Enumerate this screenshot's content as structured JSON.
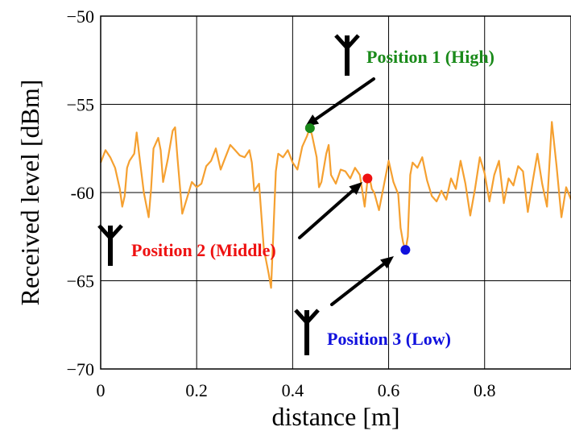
{
  "chart_data": {
    "type": "line",
    "xlabel": "distance [m]",
    "ylabel": "Received level [dBm]",
    "xlim": [
      0,
      0.98
    ],
    "ylim": [
      -70,
      -50
    ],
    "x_ticks": [
      0,
      0.2,
      0.4,
      0.6,
      0.8
    ],
    "x_tick_labels": [
      "0",
      "0.2",
      "0.4",
      "0.6",
      "0.8"
    ],
    "y_ticks": [
      -70,
      -65,
      -60,
      -55,
      -50
    ],
    "y_tick_labels": [
      "−70",
      "−65",
      "-60",
      "−55",
      "−50"
    ],
    "grid": true,
    "series": [
      {
        "color": "#f5a030",
        "x": [
          0.0,
          0.01,
          0.02,
          0.03,
          0.04,
          0.045,
          0.05,
          0.055,
          0.06,
          0.07,
          0.075,
          0.08,
          0.09,
          0.1,
          0.105,
          0.11,
          0.12,
          0.125,
          0.13,
          0.14,
          0.15,
          0.155,
          0.16,
          0.17,
          0.18,
          0.19,
          0.2,
          0.21,
          0.22,
          0.23,
          0.24,
          0.25,
          0.26,
          0.27,
          0.28,
          0.29,
          0.3,
          0.31,
          0.315,
          0.32,
          0.33,
          0.34,
          0.35,
          0.355,
          0.36,
          0.365,
          0.37,
          0.38,
          0.39,
          0.4,
          0.41,
          0.42,
          0.43,
          0.435,
          0.44,
          0.45,
          0.455,
          0.46,
          0.47,
          0.475,
          0.48,
          0.49,
          0.5,
          0.51,
          0.52,
          0.53,
          0.54,
          0.55,
          0.556,
          0.56,
          0.565,
          0.57,
          0.58,
          0.59,
          0.6,
          0.61,
          0.62,
          0.625,
          0.63,
          0.635,
          0.64,
          0.645,
          0.65,
          0.66,
          0.67,
          0.68,
          0.69,
          0.7,
          0.71,
          0.72,
          0.73,
          0.74,
          0.75,
          0.76,
          0.77,
          0.78,
          0.79,
          0.8,
          0.81,
          0.82,
          0.83,
          0.84,
          0.85,
          0.86,
          0.87,
          0.88,
          0.89,
          0.9,
          0.91,
          0.92,
          0.93,
          0.94,
          0.95,
          0.96,
          0.97,
          0.98
        ],
        "y": [
          -58.3,
          -57.6,
          -58.0,
          -58.6,
          -59.8,
          -60.8,
          -60.2,
          -58.6,
          -58.2,
          -57.8,
          -56.6,
          -57.8,
          -60.0,
          -61.4,
          -59.8,
          -57.5,
          -56.9,
          -57.6,
          -59.4,
          -58.1,
          -56.5,
          -56.3,
          -58.0,
          -61.2,
          -60.3,
          -59.4,
          -59.7,
          -59.5,
          -58.5,
          -58.2,
          -57.5,
          -58.7,
          -58.0,
          -57.3,
          -57.6,
          -57.9,
          -58.0,
          -57.6,
          -58.3,
          -59.9,
          -59.5,
          -63.2,
          -64.6,
          -65.4,
          -62.2,
          -58.8,
          -57.8,
          -58.0,
          -57.6,
          -58.3,
          -58.7,
          -57.4,
          -56.8,
          -56.4,
          -56.7,
          -58.0,
          -59.7,
          -59.4,
          -57.8,
          -57.3,
          -59.0,
          -59.5,
          -58.7,
          -58.8,
          -59.2,
          -58.6,
          -59.0,
          -60.8,
          -59.3,
          -59.1,
          -59.8,
          -60.0,
          -61.0,
          -59.6,
          -58.2,
          -59.4,
          -60.1,
          -62.0,
          -62.8,
          -63.3,
          -62.5,
          -59.0,
          -58.3,
          -58.6,
          -58.0,
          -59.3,
          -60.2,
          -60.5,
          -59.9,
          -60.4,
          -59.2,
          -59.8,
          -58.2,
          -59.5,
          -61.3,
          -59.8,
          -58.0,
          -58.9,
          -60.5,
          -59.0,
          -58.2,
          -60.6,
          -59.2,
          -59.6,
          -58.5,
          -58.8,
          -61.1,
          -59.4,
          -57.8,
          -59.5,
          -60.8,
          -56.0,
          -58.5,
          -61.4,
          -59.7,
          -60.4
        ]
      }
    ],
    "markers": [
      {
        "x": 0.436,
        "y": -56.35,
        "color": "#1a8a1a",
        "label": "Position 1 (High)"
      },
      {
        "x": 0.556,
        "y": -59.2,
        "color": "#ee1111",
        "label": "Position 2 (Middle)"
      },
      {
        "x": 0.635,
        "y": -63.25,
        "color": "#1111dd",
        "label": "Position 3 (Low)"
      }
    ]
  }
}
